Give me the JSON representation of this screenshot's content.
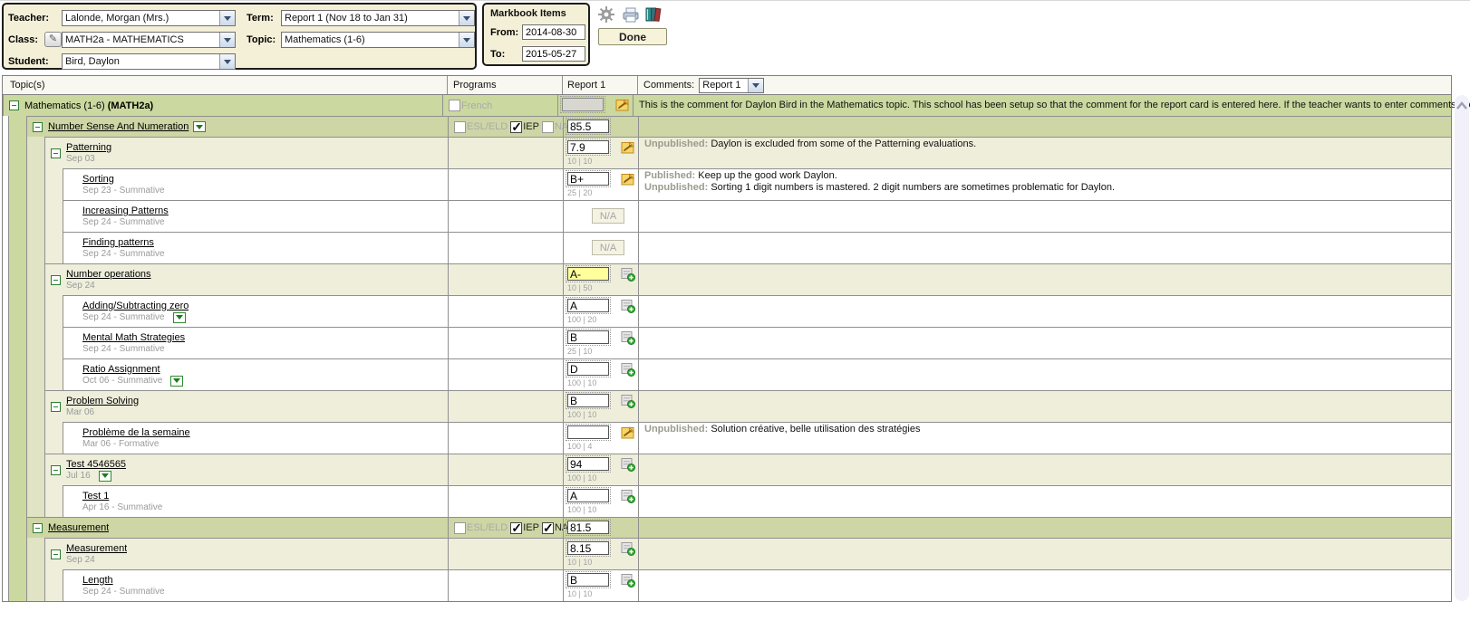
{
  "filters": {
    "teacher_label": "Teacher:",
    "teacher_value": "Lalonde, Morgan (Mrs.)",
    "class_label": "Class:",
    "class_value": "MATH2a - MATHEMATICS",
    "student_label": "Student:",
    "student_value": "Bird, Daylon",
    "term_label": "Term:",
    "term_value": "Report 1 (Nov 18 to Jan 31)",
    "topic_label": "Topic:",
    "topic_value": "Mathematics (1-6)",
    "edit_class_glyph": "✎"
  },
  "markbook": {
    "title": "Markbook Items",
    "from_label": "From:",
    "from_value": "2014-08-30",
    "to_label": "To:",
    "to_value": "2015-05-27"
  },
  "toolbar": {
    "done_label": "Done"
  },
  "table": {
    "columns": {
      "topics": "Topic(s)",
      "programs": "Programs",
      "report": "Report 1",
      "comments_label": "Comments:",
      "comments_period": "Report 1"
    },
    "na_label": "N/A",
    "rows": [
      {
        "level": 0,
        "kind": "group",
        "title": "Mathematics (1-6) ",
        "suffix": "(MATH2a)",
        "link": false,
        "collapse": true,
        "programs": [
          {
            "label": "French",
            "checked": false
          }
        ],
        "report": {
          "type": "disabled",
          "icon": "note"
        },
        "comments": [
          {
            "prefix": "",
            "text": "This is the comment for Daylon Bird in the Mathematics topic. This school has been setup so that the comment for the report card is entered here. If the teacher wants to enter comments fro"
          }
        ]
      },
      {
        "level": 1,
        "kind": "group",
        "title": "Number Sense And Numeration",
        "link": true,
        "collapse": true,
        "title_dropdown": true,
        "programs": [
          {
            "label": "ESL/ELD",
            "checked": false
          },
          {
            "label": "IEP",
            "checked": true
          },
          {
            "label": "NA",
            "checked": false
          }
        ],
        "report": {
          "type": "input",
          "value": "85.5"
        },
        "comments": []
      },
      {
        "level": 2,
        "kind": "group",
        "title": "Patterning",
        "subtitle": "Sep 03",
        "link": true,
        "collapse": true,
        "report": {
          "type": "input",
          "value": "7.9",
          "sub": "10 | 10",
          "icon": "note"
        },
        "comments": [
          {
            "prefix": "Unpublished:",
            "text": " Daylon is excluded from some of the Patterning evaluations."
          }
        ]
      },
      {
        "level": 3,
        "kind": "item",
        "title": "Sorting",
        "subtitle": "Sep 23 - Summative",
        "link": true,
        "report": {
          "type": "input",
          "value": "B+",
          "sub": "25 | 20",
          "icon": "note"
        },
        "comments": [
          {
            "prefix": "Published:",
            "text": " Keep up the good work Daylon."
          },
          {
            "prefix": "Unpublished:",
            "text": " Sorting 1 digit numbers is mastered. 2 digit numbers are sometimes problematic for Daylon."
          }
        ]
      },
      {
        "level": 3,
        "kind": "item",
        "title": "Increasing Patterns",
        "subtitle": "Sep 24 - Summative",
        "link": true,
        "report": {
          "type": "na"
        },
        "comments": []
      },
      {
        "level": 3,
        "kind": "item",
        "title": "Finding patterns",
        "subtitle": "Sep 24 - Summative",
        "link": true,
        "report": {
          "type": "na"
        },
        "comments": []
      },
      {
        "level": 2,
        "kind": "group",
        "title": "Number operations",
        "subtitle": "Sep 24",
        "link": true,
        "collapse": true,
        "report": {
          "type": "input",
          "value": "A-",
          "sub": "10 | 50",
          "icon": "add",
          "highlight": true
        },
        "comments": []
      },
      {
        "level": 3,
        "kind": "item",
        "title": "Adding/Subtracting zero",
        "subtitle": "Sep 24 - Summative",
        "link": true,
        "subtitle_dropdown": true,
        "report": {
          "type": "input",
          "value": "A",
          "sub": "100 | 20",
          "icon": "add"
        },
        "comments": []
      },
      {
        "level": 3,
        "kind": "item",
        "title": "Mental Math Strategies",
        "subtitle": "Sep 24 - Summative",
        "link": true,
        "report": {
          "type": "input",
          "value": "B",
          "sub": "25 | 10",
          "icon": "add"
        },
        "comments": []
      },
      {
        "level": 3,
        "kind": "item",
        "title": "Ratio Assignment",
        "subtitle": "Oct 06 - Summative",
        "link": true,
        "subtitle_dropdown": true,
        "report": {
          "type": "input",
          "value": "D",
          "sub": "100 | 10",
          "icon": "add"
        },
        "comments": []
      },
      {
        "level": 2,
        "kind": "group",
        "title": "Problem Solving",
        "subtitle": "Mar 06",
        "link": true,
        "collapse": true,
        "report": {
          "type": "input",
          "value": "B",
          "sub": "100 | 10",
          "icon": "add"
        },
        "comments": []
      },
      {
        "level": 3,
        "kind": "item",
        "title": "Problème de la semaine",
        "subtitle": "Mar 06 - Formative",
        "link": true,
        "report": {
          "type": "input",
          "value": "",
          "sub": "100 | 4",
          "icon": "note"
        },
        "comments": [
          {
            "prefix": "Unpublished:",
            "text": " Solution créative, belle utilisation des stratégies"
          }
        ]
      },
      {
        "level": 2,
        "kind": "group",
        "title": "Test 4546565",
        "subtitle": "Jul 16",
        "link": true,
        "collapse": true,
        "subtitle_dropdown": true,
        "report": {
          "type": "input",
          "value": "94",
          "sub": "100 | 10",
          "icon": "add"
        },
        "comments": []
      },
      {
        "level": 3,
        "kind": "item",
        "title": "Test 1",
        "subtitle": "Apr 16 - Summative",
        "link": true,
        "report": {
          "type": "input",
          "value": "A",
          "sub": "100 | 10",
          "icon": "add"
        },
        "comments": []
      },
      {
        "level": 1,
        "kind": "group",
        "title": "Measurement",
        "link": true,
        "collapse": true,
        "programs": [
          {
            "label": "ESL/ELD",
            "checked": false
          },
          {
            "label": "IEP",
            "checked": true
          },
          {
            "label": "NA",
            "checked": true
          }
        ],
        "report": {
          "type": "input",
          "value": "81.5"
        },
        "comments": []
      },
      {
        "level": 2,
        "kind": "group",
        "title": "Measurement",
        "subtitle": "Sep 24",
        "link": true,
        "collapse": true,
        "report": {
          "type": "input",
          "value": "8.15",
          "sub": "10 | 10",
          "icon": "add"
        },
        "comments": []
      },
      {
        "level": 3,
        "kind": "item",
        "title": "Length",
        "subtitle": "Sep 24 - Summative",
        "link": true,
        "report": {
          "type": "input",
          "value": "B",
          "sub": "10 | 10",
          "icon": "add"
        },
        "comments": []
      }
    ]
  },
  "colors": {
    "accent_green": "#cbd89f",
    "beige": "#eeeedb",
    "highlight": "#ffff9c",
    "panel": "#f4f0d8"
  }
}
